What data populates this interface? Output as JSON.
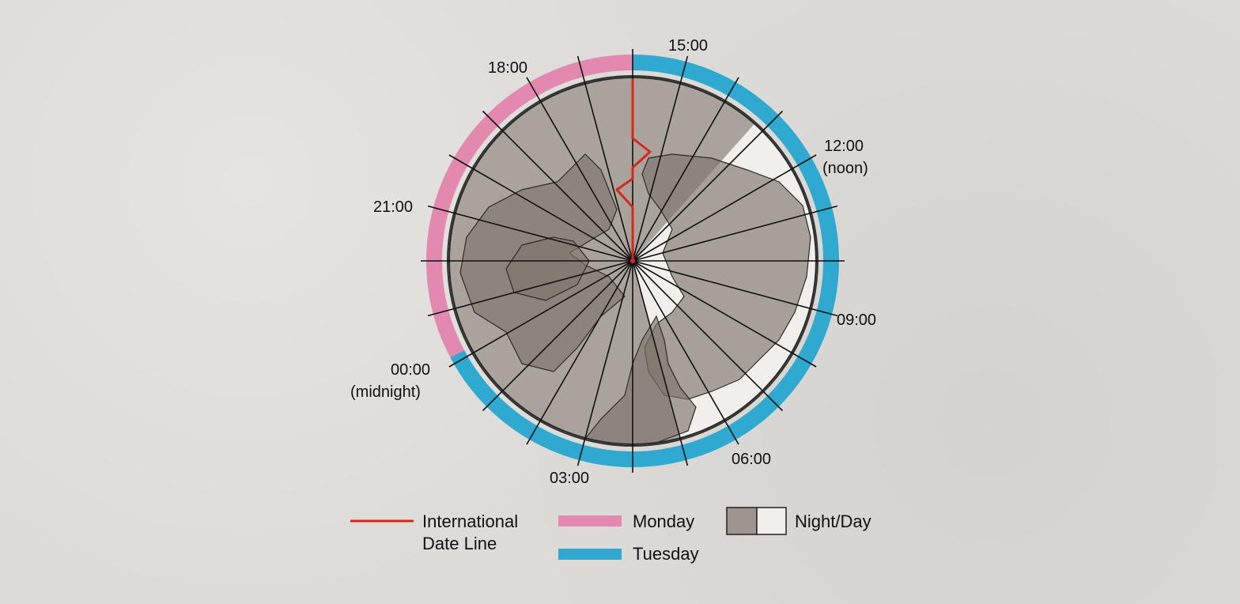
{
  "hour_labels": [
    {
      "id": "h15",
      "text": "15:00"
    },
    {
      "id": "h18",
      "text": "18:00"
    },
    {
      "id": "h12",
      "text": "12:00",
      "sub": "(noon)"
    },
    {
      "id": "h21",
      "text": "21:00"
    },
    {
      "id": "h09",
      "text": "09:00"
    },
    {
      "id": "h00",
      "text": "00:00",
      "sub": "(midnight)"
    },
    {
      "id": "h03",
      "text": "03:00"
    },
    {
      "id": "h06",
      "text": "06:00"
    }
  ],
  "legend": {
    "date_line_1": "International",
    "date_line_2": "Date Line",
    "monday": "Monday",
    "tuesday": "Tuesday",
    "night_day": "Night/Day"
  },
  "colors": {
    "date_line": "#d8261b",
    "monday": "#e389b0",
    "tuesday": "#2fa9cf",
    "night": "#9d958e",
    "day": "#f1efeb",
    "land": "#7e746d"
  }
}
